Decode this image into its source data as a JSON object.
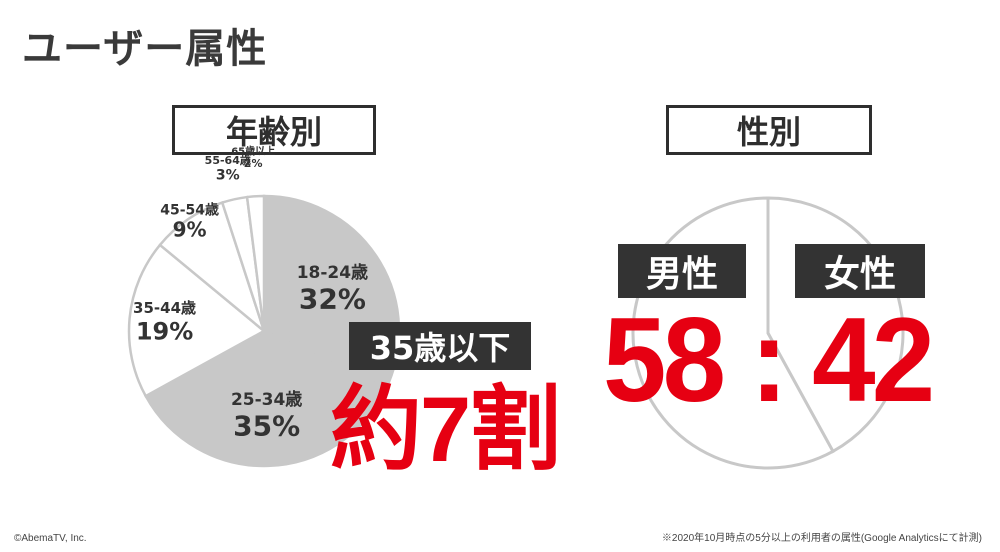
{
  "page": {
    "title": "ユーザー属性",
    "copyright": "©AbemaTV, Inc.",
    "source_note": "※2020年10月時点の5分以上の利用者の属性(Google Analyticsにて計測)"
  },
  "age_section": {
    "title": "年齢別",
    "summary_label": "35歳以下",
    "summary_big": "約7割"
  },
  "gender_section": {
    "title": "性別",
    "male_label": "男性",
    "female_label": "女性",
    "ratio_text": "58 : 42"
  },
  "colors": {
    "highlight_slice": "#c8c8c8",
    "plain_slice": "#ffffff",
    "slice_border": "#c8c8c8",
    "accent_red": "#e60012",
    "dark_box": "#333333"
  },
  "chart_data": [
    {
      "type": "pie",
      "title": "年齢別",
      "categories": [
        "18-24歳",
        "25-34歳",
        "35-44歳",
        "45-54歳",
        "55-64歳",
        "65歳以上"
      ],
      "values": [
        32,
        35,
        19,
        9,
        3,
        2
      ],
      "value_labels": [
        "32%",
        "35%",
        "19%",
        "9%",
        "3%",
        "2%"
      ],
      "highlighted": [
        true,
        true,
        false,
        false,
        false,
        false
      ],
      "start": "top",
      "direction": "clockwise"
    },
    {
      "type": "pie",
      "title": "性別",
      "categories": [
        "男性",
        "女性"
      ],
      "values": [
        58,
        42
      ],
      "start": "top",
      "direction": "counterclockwise"
    }
  ]
}
